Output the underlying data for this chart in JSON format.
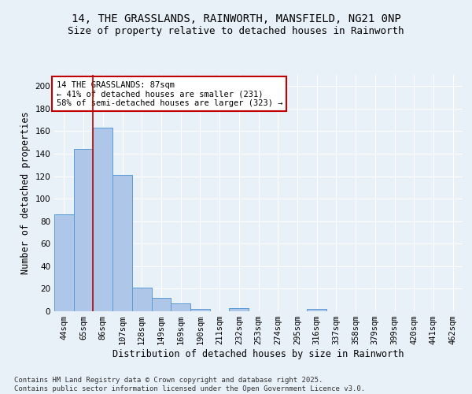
{
  "title_line1": "14, THE GRASSLANDS, RAINWORTH, MANSFIELD, NG21 0NP",
  "title_line2": "Size of property relative to detached houses in Rainworth",
  "xlabel": "Distribution of detached houses by size in Rainworth",
  "ylabel": "Number of detached properties",
  "categories": [
    "44sqm",
    "65sqm",
    "86sqm",
    "107sqm",
    "128sqm",
    "149sqm",
    "169sqm",
    "190sqm",
    "211sqm",
    "232sqm",
    "253sqm",
    "274sqm",
    "295sqm",
    "316sqm",
    "337sqm",
    "358sqm",
    "379sqm",
    "399sqm",
    "420sqm",
    "441sqm",
    "462sqm"
  ],
  "values": [
    86,
    144,
    163,
    121,
    21,
    12,
    7,
    2,
    0,
    3,
    0,
    0,
    0,
    2,
    0,
    0,
    0,
    0,
    0,
    0,
    0
  ],
  "bar_color": "#aec6e8",
  "bar_edge_color": "#5b9bd5",
  "vline_x": 1.5,
  "vline_color": "#c00000",
  "annotation_text": "14 THE GRASSLANDS: 87sqm\n← 41% of detached houses are smaller (231)\n58% of semi-detached houses are larger (323) →",
  "annotation_box_color": "#ffffff",
  "annotation_box_edge": "#c00000",
  "background_color": "#e8f0f8",
  "plot_bg_color": "#e8f0f8",
  "grid_color": "#ffffff",
  "ylim": [
    0,
    210
  ],
  "yticks": [
    0,
    20,
    40,
    60,
    80,
    100,
    120,
    140,
    160,
    180,
    200
  ],
  "footer": "Contains HM Land Registry data © Crown copyright and database right 2025.\nContains public sector information licensed under the Open Government Licence v3.0.",
  "title_fontsize": 10,
  "subtitle_fontsize": 9,
  "axis_label_fontsize": 8.5,
  "tick_fontsize": 7.5,
  "annotation_fontsize": 7.5,
  "footer_fontsize": 6.5
}
